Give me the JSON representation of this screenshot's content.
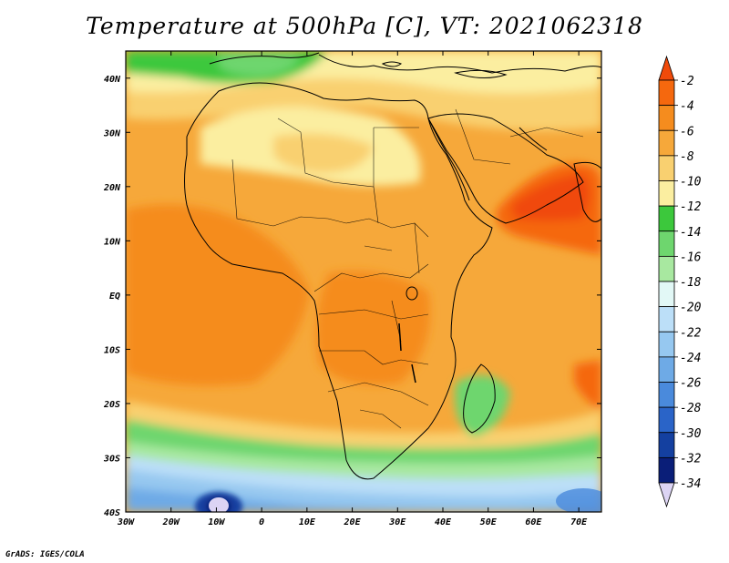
{
  "title": "Temperature at 500hPa [C], VT: 2021062318",
  "credit": "GrADS: IGES/COLA",
  "map": {
    "lon_ticks": [
      "30W",
      "20W",
      "10W",
      "0",
      "10E",
      "20E",
      "30E",
      "40E",
      "50E",
      "60E",
      "70E"
    ],
    "lat_ticks": [
      "40N",
      "30N",
      "20N",
      "10N",
      "EQ",
      "10S",
      "20S",
      "30S",
      "40S"
    ],
    "lon_range": [
      -30,
      75
    ],
    "lat_range": [
      -40,
      45
    ]
  },
  "colorbar": {
    "unit": "C",
    "levels": [
      "-2",
      "-4",
      "-6",
      "-8",
      "-10",
      "-12",
      "-14",
      "-16",
      "-18",
      "-20",
      "-22",
      "-24",
      "-26",
      "-28",
      "-30",
      "-32",
      "-34"
    ],
    "colors": [
      "#f04a0a",
      "#f5680e",
      "#f58c1e",
      "#f6a83a",
      "#f9d070",
      "#fbeea0",
      "#3cc83c",
      "#6ed66e",
      "#a8e8a0",
      "#e2f8f6",
      "#bcdff8",
      "#96c8f0",
      "#6eaae6",
      "#4a8adc",
      "#2a64c8",
      "#1440a0",
      "#0a1e78",
      "#dcd4f4"
    ]
  }
}
